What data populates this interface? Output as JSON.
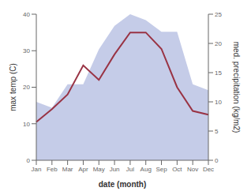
{
  "chart_data": {
    "type": "line",
    "xlabel": "date (month)",
    "ylabel": "max temp (C)",
    "y2label": "med. precipitation (kg/m2)",
    "categories": [
      "Jan",
      "Feb",
      "Mar",
      "Apr",
      "May",
      "Jun",
      "Jul",
      "Aug",
      "Sep",
      "Oct",
      "Nov",
      "Dec"
    ],
    "series": [
      {
        "type": "area",
        "axis": "y2",
        "color": "#c5cce8",
        "values": [
          10.0,
          9.0,
          13.0,
          13.0,
          19.0,
          23.0,
          25.0,
          24.0,
          22.0,
          22.0,
          13.0,
          12.0
        ]
      },
      {
        "type": "line",
        "color": "#993344",
        "values": [
          10.5,
          14.0,
          18.0,
          26.0,
          22.0,
          29.0,
          35.0,
          35.0,
          30.5,
          20.0,
          13.5,
          12.5
        ]
      }
    ],
    "ylim": [
      0,
      40
    ],
    "yticks": [
      0,
      10,
      20,
      30,
      40
    ],
    "y2lim": [
      0,
      25
    ],
    "y2ticks": [
      0,
      5,
      10,
      15,
      20,
      25
    ],
    "grid": false
  }
}
